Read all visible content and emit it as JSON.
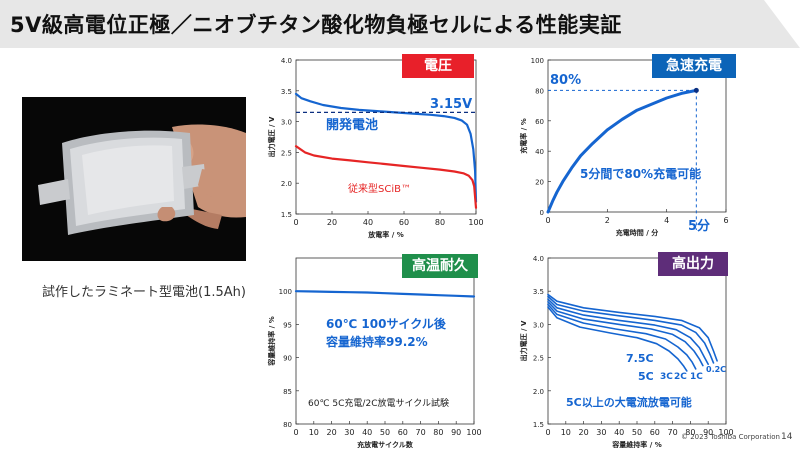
{
  "title": "5V級高電位正極／ニオブチタン酸化物負極セルによる性能実証",
  "photo": {
    "caption": "試作したラミネート型電池(1.5Ah)"
  },
  "footer": {
    "copyright": "© 2023 Toshiba Corporation",
    "page": "14"
  },
  "colors": {
    "red_label": "#e8202a",
    "blue_label": "#0c64b8",
    "green_label": "#1f8f4b",
    "purple_label": "#5e2d79",
    "blue_line": "#1565d0",
    "red_line": "#e62525"
  },
  "chart_data": [
    {
      "id": "voltage",
      "type": "line",
      "label": "電圧",
      "xlabel": "放電率 / %",
      "ylabel": "出力電圧 / V",
      "xlim": [
        0,
        100
      ],
      "ylim": [
        1.5,
        4.0
      ],
      "xticks": [
        "0",
        "20",
        "40",
        "60",
        "80",
        "100"
      ],
      "yticks": [
        "1.5",
        "2.0",
        "2.5",
        "3.0",
        "3.5",
        "4.0"
      ],
      "series": [
        {
          "name": "開発電池",
          "color": "#1565d0",
          "x": [
            0,
            3,
            8,
            15,
            25,
            35,
            45,
            55,
            65,
            75,
            82,
            88,
            92,
            95,
            97,
            98.5,
            99.5,
            100
          ],
          "y": [
            3.45,
            3.38,
            3.33,
            3.27,
            3.22,
            3.19,
            3.17,
            3.15,
            3.13,
            3.11,
            3.09,
            3.06,
            3.02,
            2.95,
            2.8,
            2.55,
            2.2,
            1.7
          ]
        },
        {
          "name": "従来型SCiB™",
          "color": "#e62525",
          "x": [
            0,
            5,
            10,
            20,
            30,
            40,
            50,
            60,
            70,
            80,
            88,
            93,
            96,
            98,
            99,
            100
          ],
          "y": [
            2.6,
            2.5,
            2.45,
            2.4,
            2.37,
            2.34,
            2.31,
            2.28,
            2.25,
            2.22,
            2.19,
            2.16,
            2.12,
            2.05,
            1.95,
            1.6
          ]
        }
      ],
      "annotations": {
        "reference": "3.15V",
        "dev_label": "開発電池",
        "conv_label": "従来型SCiB™"
      }
    },
    {
      "id": "fast_charge",
      "type": "line",
      "label": "急速充電",
      "xlabel": "充電時間 / 分",
      "ylabel": "充電率 / %",
      "xlim": [
        0,
        6
      ],
      "ylim": [
        0,
        100
      ],
      "xticks": [
        "0",
        "2",
        "4",
        "6"
      ],
      "yticks": [
        "0",
        "20",
        "40",
        "60",
        "80",
        "100"
      ],
      "series": [
        {
          "name": "充電曲線",
          "color": "#1565d0",
          "x": [
            0,
            0.15,
            0.3,
            0.5,
            0.8,
            1.1,
            1.5,
            2,
            2.5,
            3,
            3.5,
            4,
            4.5,
            5
          ],
          "y": [
            0,
            7,
            13,
            20,
            29,
            37,
            45,
            54,
            61,
            67,
            71,
            75,
            78,
            80
          ]
        }
      ],
      "annotations": {
        "percent": "80%",
        "time": "5分",
        "text": "5分間で80%充電可能"
      }
    },
    {
      "id": "high_temp",
      "type": "line",
      "label": "高温耐久",
      "xlabel": "充放電サイクル数",
      "ylabel": "容量維持率 / %",
      "xlim": [
        0,
        100
      ],
      "ylim": [
        80,
        105
      ],
      "xticks": [
        "0",
        "10",
        "20",
        "30",
        "40",
        "50",
        "60",
        "70",
        "80",
        "90",
        "100"
      ],
      "yticks": [
        "80",
        "85",
        "90",
        "95",
        "100"
      ],
      "series": [
        {
          "name": "容量維持率",
          "color": "#1565d0",
          "x": [
            0,
            10,
            20,
            30,
            40,
            50,
            60,
            70,
            80,
            90,
            100
          ],
          "y": [
            100,
            99.95,
            99.9,
            99.85,
            99.8,
            99.7,
            99.6,
            99.5,
            99.4,
            99.3,
            99.2
          ]
        }
      ],
      "annotations": {
        "line1": "60℃ 100サイクル後",
        "line2": "容量維持率99.2%",
        "note": "60℃ 5C充電/2C放電サイクル試験"
      }
    },
    {
      "id": "high_power",
      "type": "line",
      "label": "高出力",
      "xlabel": "容量維持率 / %",
      "ylabel": "出力電圧 / V",
      "xlim": [
        0,
        100
      ],
      "ylim": [
        1.5,
        4.0
      ],
      "xticks": [
        "0",
        "10",
        "20",
        "30",
        "40",
        "50",
        "60",
        "70",
        "80",
        "90",
        "100"
      ],
      "yticks": [
        "1.5",
        "2.0",
        "2.5",
        "3.0",
        "3.5",
        "4.0"
      ],
      "series": [
        {
          "name": "0.2C",
          "color": "#1565d0",
          "x": [
            0,
            5,
            20,
            40,
            60,
            75,
            85,
            90,
            93,
            95
          ],
          "y": [
            3.45,
            3.35,
            3.25,
            3.18,
            3.12,
            3.06,
            2.95,
            2.8,
            2.6,
            2.45
          ]
        },
        {
          "name": "1C",
          "color": "#1565d0",
          "x": [
            0,
            5,
            20,
            40,
            60,
            75,
            83,
            88,
            91,
            93
          ],
          "y": [
            3.42,
            3.3,
            3.2,
            3.13,
            3.06,
            2.99,
            2.88,
            2.72,
            2.55,
            2.42
          ]
        },
        {
          "name": "2C",
          "color": "#1565d0",
          "x": [
            0,
            5,
            20,
            40,
            60,
            72,
            80,
            85,
            88,
            90
          ],
          "y": [
            3.38,
            3.25,
            3.14,
            3.06,
            2.99,
            2.92,
            2.8,
            2.65,
            2.5,
            2.4
          ]
        },
        {
          "name": "3C",
          "color": "#1565d0",
          "x": [
            0,
            5,
            20,
            40,
            58,
            70,
            77,
            82,
            85,
            87
          ],
          "y": [
            3.34,
            3.2,
            3.08,
            3.0,
            2.93,
            2.85,
            2.74,
            2.6,
            2.48,
            2.38
          ]
        },
        {
          "name": "5C",
          "color": "#1565d0",
          "x": [
            0,
            5,
            20,
            38,
            55,
            66,
            73,
            78,
            81,
            83
          ],
          "y": [
            3.3,
            3.15,
            3.02,
            2.93,
            2.86,
            2.78,
            2.66,
            2.54,
            2.43,
            2.33
          ]
        },
        {
          "name": "7.5C",
          "color": "#1565d0",
          "x": [
            0,
            5,
            18,
            35,
            50,
            61,
            68,
            73,
            76,
            78
          ],
          "y": [
            3.26,
            3.1,
            2.96,
            2.87,
            2.8,
            2.71,
            2.6,
            2.48,
            2.38,
            2.3
          ]
        }
      ],
      "annotations": {
        "text": "5C以上の大電流放電可能"
      }
    }
  ]
}
